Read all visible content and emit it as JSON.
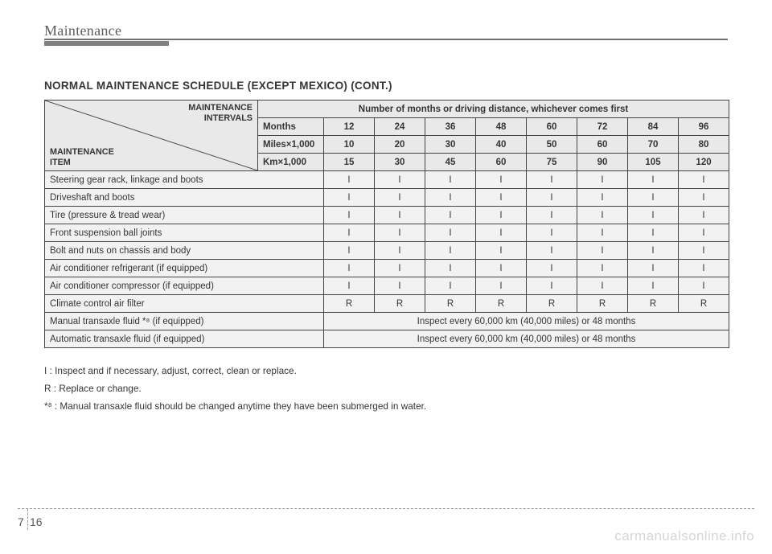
{
  "header": {
    "title": "Maintenance"
  },
  "section_title": "NORMAL MAINTENANCE SCHEDULE (EXCEPT MEXICO) (CONT.)",
  "tbl": {
    "diag_top1": "MAINTENANCE",
    "diag_top2": "INTERVALS",
    "diag_bot1": "MAINTENANCE",
    "diag_bot2": "ITEM",
    "super_header": "Number of months or driving distance, whichever comes first",
    "row_labels": [
      "Months",
      "Miles×1,000",
      "Km×1,000"
    ],
    "months": [
      "12",
      "24",
      "36",
      "48",
      "60",
      "72",
      "84",
      "96"
    ],
    "miles": [
      "10",
      "20",
      "30",
      "40",
      "50",
      "60",
      "70",
      "80"
    ],
    "km": [
      "15",
      "30",
      "45",
      "60",
      "75",
      "90",
      "105",
      "120"
    ],
    "items": [
      {
        "name": "Steering gear rack, linkage and boots",
        "vals": [
          "I",
          "I",
          "I",
          "I",
          "I",
          "I",
          "I",
          "I"
        ]
      },
      {
        "name": "Driveshaft and boots",
        "vals": [
          "I",
          "I",
          "I",
          "I",
          "I",
          "I",
          "I",
          "I"
        ]
      },
      {
        "name": "Tire (pressure & tread wear)",
        "vals": [
          "I",
          "I",
          "I",
          "I",
          "I",
          "I",
          "I",
          "I"
        ]
      },
      {
        "name": "Front suspension ball joints",
        "vals": [
          "I",
          "I",
          "I",
          "I",
          "I",
          "I",
          "I",
          "I"
        ]
      },
      {
        "name": "Bolt and nuts on chassis and body",
        "vals": [
          "I",
          "I",
          "I",
          "I",
          "I",
          "I",
          "I",
          "I"
        ]
      },
      {
        "name": "Air conditioner refrigerant (if equipped)",
        "vals": [
          "I",
          "I",
          "I",
          "I",
          "I",
          "I",
          "I",
          "I"
        ]
      },
      {
        "name": "Air conditioner compressor (if equipped)",
        "vals": [
          "I",
          "I",
          "I",
          "I",
          "I",
          "I",
          "I",
          "I"
        ]
      },
      {
        "name": "Climate control air filter",
        "vals": [
          "R",
          "R",
          "R",
          "R",
          "R",
          "R",
          "R",
          "R"
        ]
      }
    ],
    "span_items": [
      {
        "name": "Manual transaxle fluid *⁸ (if equipped)",
        "text": "Inspect every 60,000 km (40,000 miles) or 48 months"
      },
      {
        "name": "Automatic transaxle fluid (if equipped)",
        "text": "Inspect every 60,000 km (40,000 miles) or 48 months"
      }
    ]
  },
  "legend": {
    "l1": "I   : Inspect and if necessary, adjust, correct, clean or replace.",
    "l2": "R : Replace or change.",
    "l3": "*⁸ : Manual transaxle fluid should be changed anytime they have been submerged in water."
  },
  "footer": {
    "chapter": "7",
    "page": "16",
    "watermark": "carmanualsonline.info"
  },
  "style": {
    "col_item_width": 265,
    "col_label_width": 82,
    "col_val_width": 63
  }
}
